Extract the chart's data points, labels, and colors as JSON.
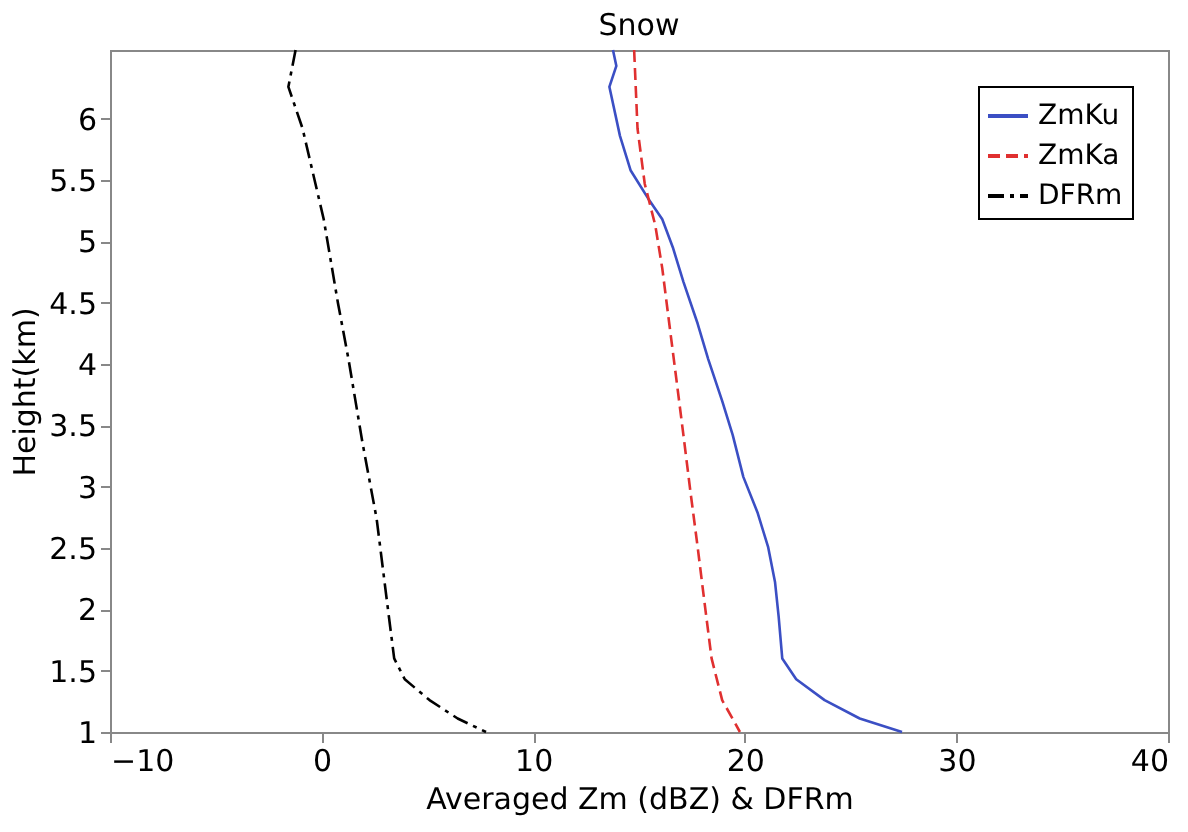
{
  "chart_data": {
    "type": "line",
    "title": "Snow",
    "xlabel": "Averaged Zm (dBZ) & DFRm",
    "ylabel": "Height(km)",
    "xlim": [
      -10,
      40
    ],
    "xticks": [
      -10,
      0,
      10,
      20,
      30,
      40
    ],
    "ylim": [
      1,
      6.56
    ],
    "yticks": [
      1,
      1.5,
      2,
      2.5,
      3,
      3.5,
      4,
      4.5,
      5,
      5.5,
      6
    ],
    "grid": false,
    "legend": "top right",
    "marker": "none",
    "series": [
      {
        "name": "ZmKu",
        "color": "#3b4fc4",
        "line_style": "solid",
        "x": [
          13.77,
          13.93,
          13.6,
          14.1,
          14.6,
          15.43,
          16.1,
          16.6,
          17.1,
          17.77,
          18.27,
          18.93,
          19.43,
          19.93,
          20.6,
          21.1,
          21.43,
          21.6,
          21.77,
          22.43,
          23.77,
          25.43,
          27.43
        ],
        "values": [
          6.56,
          6.43,
          6.26,
          5.86,
          5.58,
          5.35,
          5.18,
          4.95,
          4.67,
          4.33,
          4.04,
          3.7,
          3.42,
          3.08,
          2.79,
          2.51,
          2.22,
          1.94,
          1.6,
          1.43,
          1.26,
          1.11,
          1.0
        ]
      },
      {
        "name": "ZmKa",
        "color": "#e03030",
        "line_style": "dashed",
        "x": [
          14.77,
          14.93,
          15.27,
          15.77,
          16.1,
          16.43,
          16.77,
          17.1,
          17.43,
          17.77,
          18.1,
          18.43,
          18.93,
          19.77
        ],
        "values": [
          6.56,
          5.92,
          5.47,
          5.13,
          4.78,
          4.33,
          3.87,
          3.42,
          2.96,
          2.51,
          2.05,
          1.6,
          1.26,
          1.0
        ]
      },
      {
        "name": "DFRm",
        "color": "#000000",
        "line_style": "dashdot",
        "x": [
          -1.23,
          -1.57,
          -0.9,
          0.1,
          0.77,
          1.27,
          1.93,
          2.6,
          3.1,
          3.43,
          3.93,
          5.1,
          6.43,
          7.77
        ],
        "values": [
          6.56,
          6.26,
          5.92,
          5.18,
          4.5,
          4.04,
          3.36,
          2.74,
          2.05,
          1.6,
          1.43,
          1.26,
          1.11,
          1.0
        ]
      }
    ]
  }
}
